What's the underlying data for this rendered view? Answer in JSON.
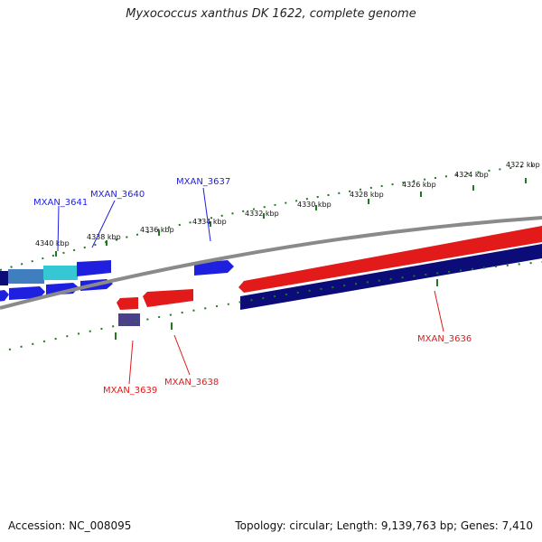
{
  "header": {
    "title": "Myxococcus xanthus DK 1622, complete genome"
  },
  "footer": {
    "accession": "Accession: NC_008095",
    "summary": "Topology: circular; Length: 9,139,763 bp; Genes: 7,410"
  },
  "colors": {
    "forward_gene": "#1f1fe0",
    "forward_gene_alt": "#35c8d4",
    "forward_gene_mid": "#3f7fc0",
    "reverse_gene": "#e21a1a",
    "reverse_gene_dark": "#0c0c78",
    "reverse_gene_muted": "#4a3f8a",
    "backbone": "#8a8a8a",
    "ticks": "#1f7a1f"
  },
  "kbp_labels": [
    "4340 kbp",
    "4338 kbp",
    "4336 kbp",
    "4334 kbp",
    "4332 kbp",
    "4330 kbp",
    "4328 kbp",
    "4326 kbp",
    "4324 kbp",
    "4322 kbp"
  ],
  "gene_labels": {
    "mxan_3641": "MXAN_3641",
    "mxan_3640": "MXAN_3640",
    "mxan_3637": "MXAN_3637",
    "mxan_3636": "MXAN_3636",
    "mxan_3638": "MXAN_3638",
    "mxan_3639": "MXAN_3639"
  }
}
